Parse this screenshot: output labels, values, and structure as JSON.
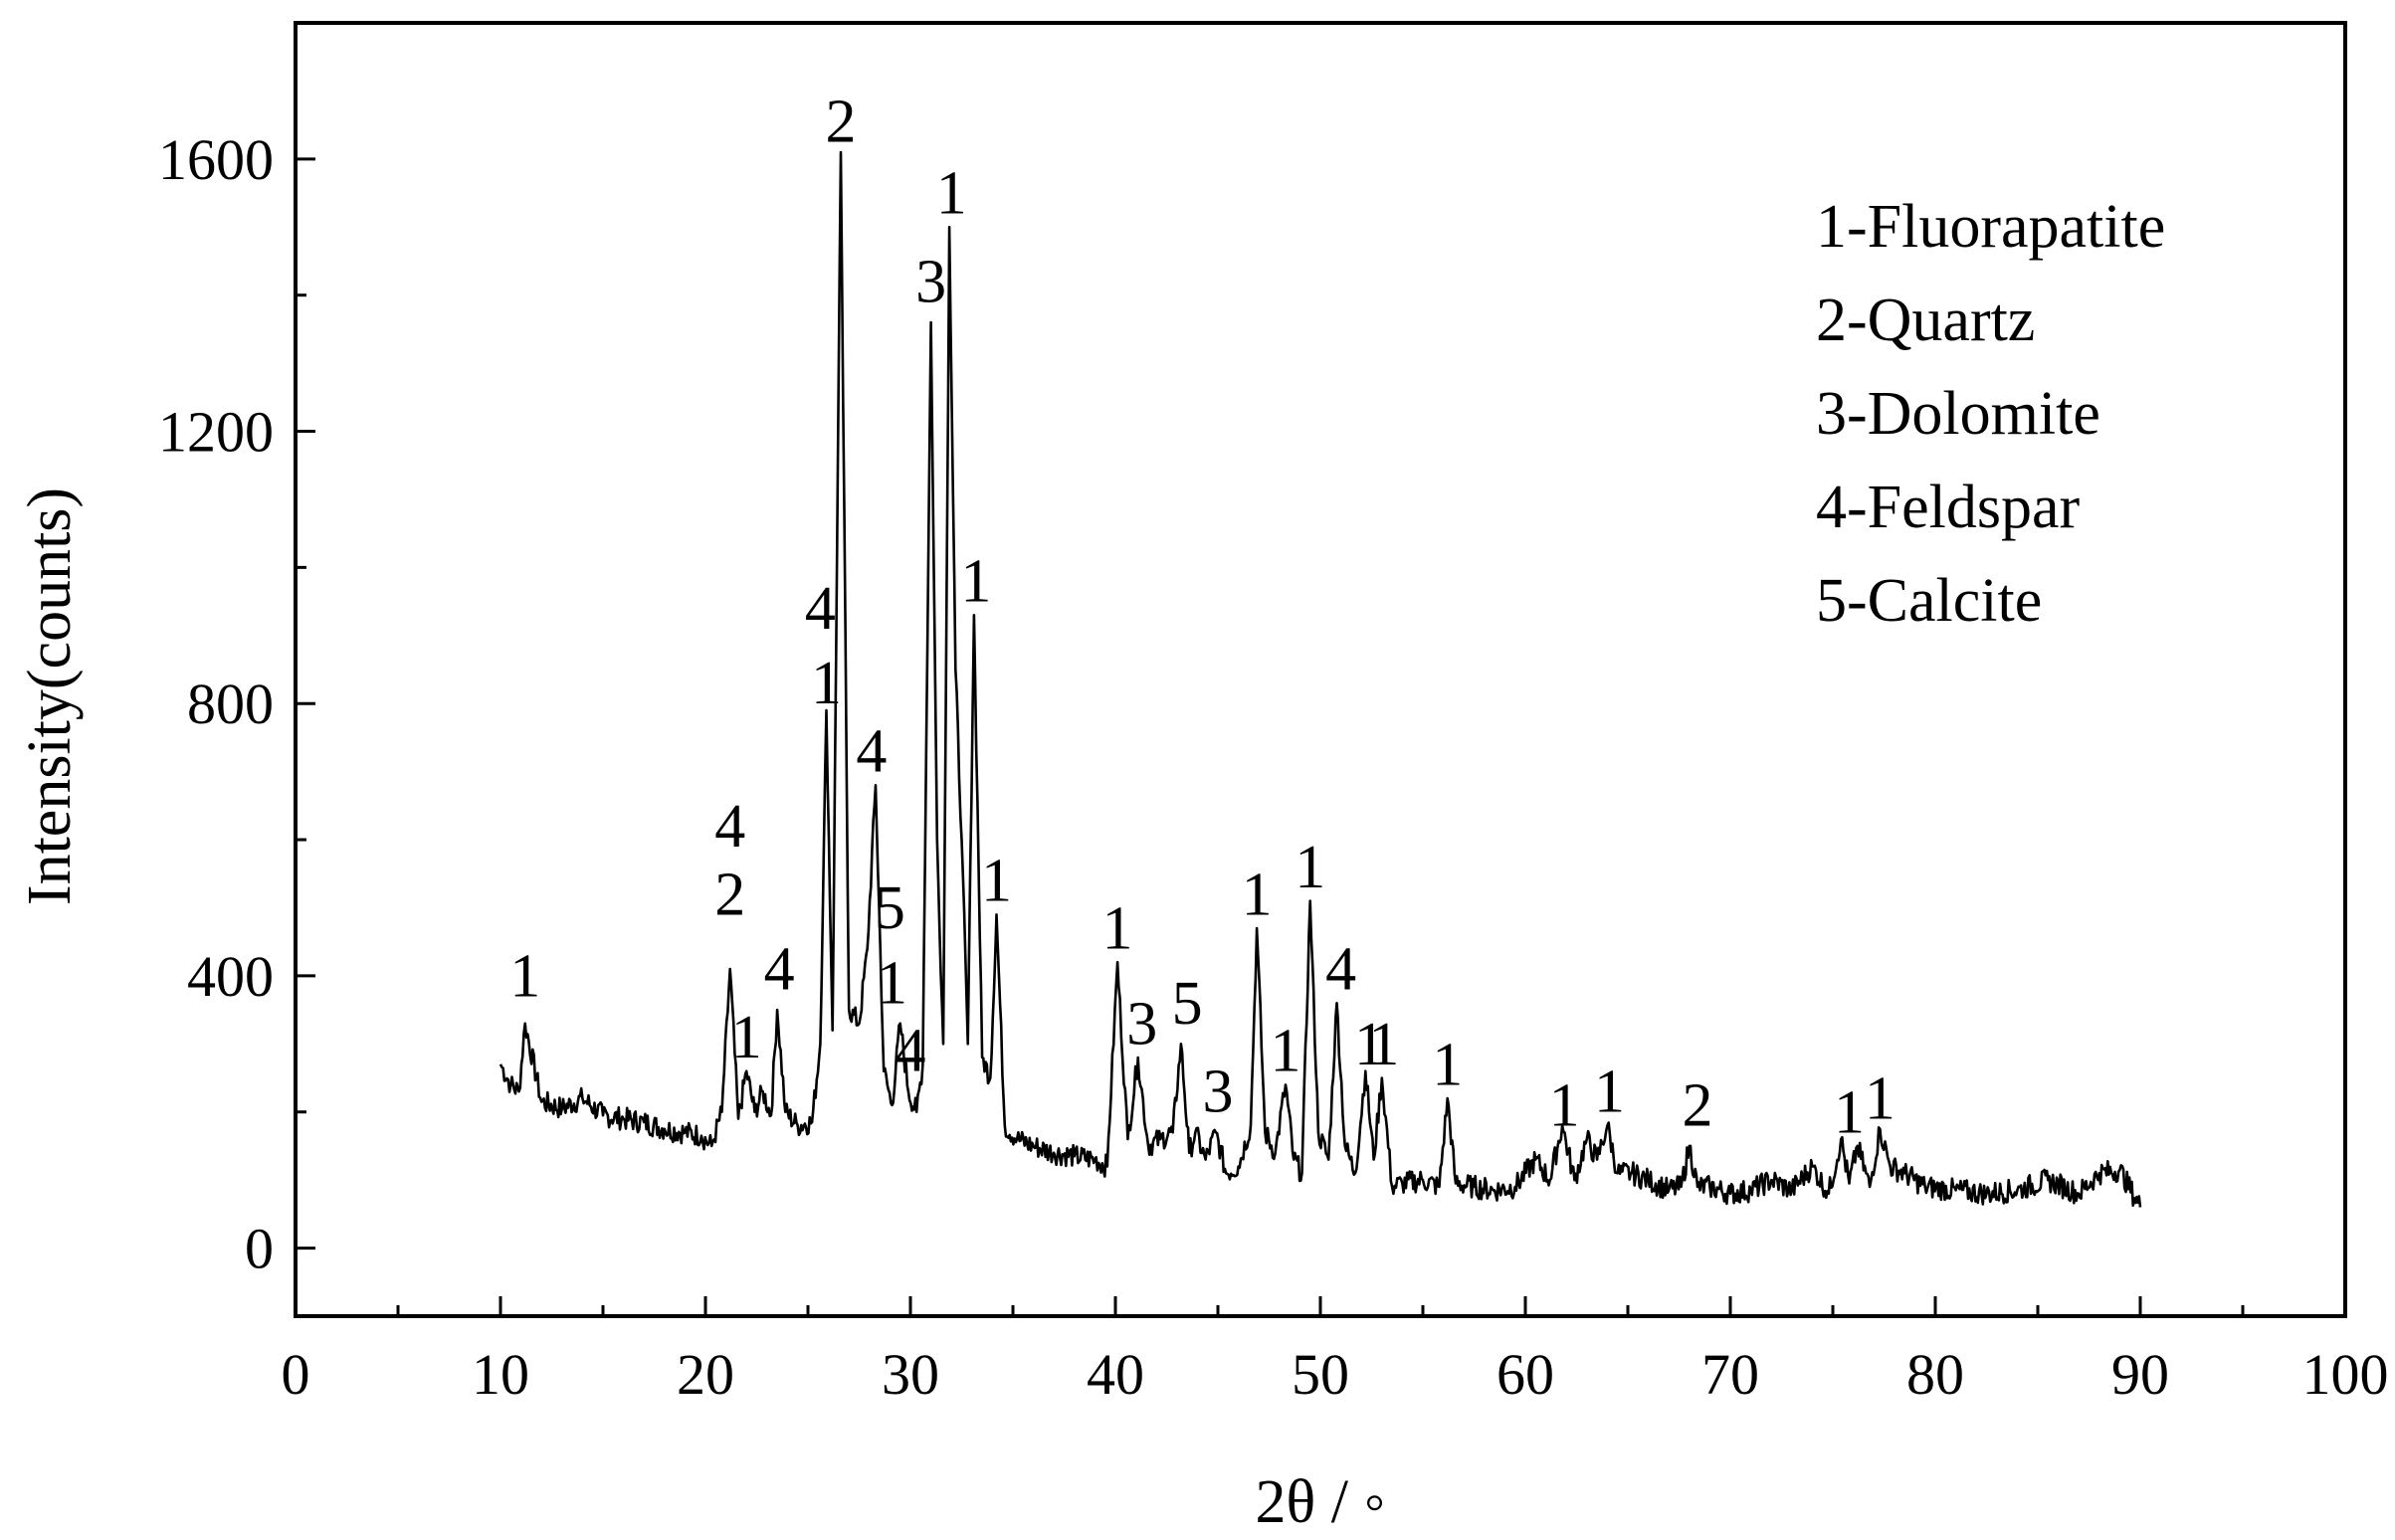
{
  "chart_data": {
    "type": "line",
    "title": "",
    "xlabel": "2θ / ◦",
    "ylabel": "Intensity(counts)",
    "xlim": [
      0,
      100
    ],
    "ylim": [
      -100,
      1800
    ],
    "x_ticks": [
      0,
      10,
      20,
      30,
      40,
      50,
      60,
      70,
      80,
      90,
      100
    ],
    "x_tick_labels": [
      "0",
      "10",
      "20",
      "30",
      "40",
      "50",
      "60",
      "70",
      "80",
      "90",
      "100"
    ],
    "y_ticks": [
      0,
      400,
      800,
      1200,
      1600
    ],
    "y_tick_labels": [
      "0",
      "400",
      "800",
      "1200",
      "1600"
    ],
    "grid": false,
    "legend_position": "top-right",
    "legend": [
      "1-Fluorapatite",
      "2-Quartz",
      "3-Dolomite",
      "4-Feldspar",
      "5-Calcite"
    ],
    "series": [
      {
        "x": [
          10,
          10.5,
          10.9,
          11.2,
          12,
          13,
          14,
          15,
          16,
          17,
          18,
          19,
          19.8,
          20.3,
          20.8,
          21.2,
          21.6,
          22,
          22.4,
          22.8,
          23.2,
          23.5,
          23.9,
          24.5,
          25.2,
          25.6,
          25.9,
          26.2,
          26.6,
          27,
          27.5,
          27.9,
          28.3,
          28.7,
          29.1,
          29.5,
          29.9,
          30.3,
          30.6,
          31,
          31.3,
          31.6,
          31.9,
          32.2,
          32.5,
          32.8,
          33.1,
          33.5,
          33.9,
          34.2,
          34.6,
          35.2,
          36,
          37,
          38,
          39,
          39.6,
          40.1,
          40.6,
          41.1,
          41.6,
          42.2,
          42.8,
          43.2,
          43.6,
          43.9,
          44.4,
          44.9,
          45.4,
          46,
          46.6,
          46.9,
          47.3,
          47.8,
          48.3,
          48.7,
          49.1,
          49.5,
          49.9,
          50.4,
          50.8,
          51.2,
          51.7,
          52.2,
          52.6,
          53,
          53.5,
          54,
          55,
          55.8,
          56.2,
          56.6,
          57.5,
          58.5,
          59.5,
          60.5,
          61.2,
          61.8,
          62.4,
          63,
          63.5,
          64,
          64.5,
          65.2,
          66,
          67,
          67.6,
          68,
          68.4,
          69,
          70,
          71,
          72,
          73,
          74,
          74.8,
          75.4,
          75.8,
          76.2,
          76.8,
          77.3,
          77.8,
          78.5,
          79.5,
          81,
          82.5,
          84,
          85.5,
          87,
          88,
          89,
          90
        ],
        "y": [
          270,
          240,
          230,
          330,
          215,
          205,
          220,
          195,
          190,
          185,
          175,
          170,
          165,
          150,
          200,
          410,
          190,
          260,
          200,
          230,
          195,
          350,
          200,
          180,
          185,
          300,
          790,
          320,
          1610,
          350,
          330,
          440,
          680,
          260,
          210,
          330,
          230,
          200,
          270,
          1360,
          600,
          300,
          1500,
          850,
          600,
          300,
          930,
          280,
          250,
          490,
          180,
          160,
          150,
          140,
          135,
          130,
          120,
          420,
          160,
          280,
          150,
          160,
          170,
          300,
          140,
          170,
          130,
          170,
          110,
          120,
          180,
          470,
          170,
          140,
          240,
          130,
          110,
          510,
          170,
          130,
          360,
          150,
          110,
          260,
          130,
          250,
          90,
          95,
          100,
          90,
          220,
          95,
          90,
          85,
          90,
          130,
          100,
          180,
          100,
          160,
          130,
          180,
          110,
          110,
          100,
          85,
          90,
          150,
          90,
          90,
          80,
          85,
          100,
          85,
          120,
          80,
          160,
          95,
          150,
          90,
          175,
          120,
          110,
          90,
          85,
          80,
          85,
          100,
          80,
          110,
          115,
          60
        ]
      }
    ],
    "peak_labels": [
      {
        "x": 11.2,
        "y": 370,
        "text": "1"
      },
      {
        "x": 21.2,
        "y": 590,
        "text": "4"
      },
      {
        "x": 21.2,
        "y": 490,
        "text": "2"
      },
      {
        "x": 22.0,
        "y": 280,
        "text": "1"
      },
      {
        "x": 23.6,
        "y": 380,
        "text": "4"
      },
      {
        "x": 25.6,
        "y": 910,
        "text": "4"
      },
      {
        "x": 25.9,
        "y": 800,
        "text": "1"
      },
      {
        "x": 26.6,
        "y": 1625,
        "text": "2"
      },
      {
        "x": 28.1,
        "y": 700,
        "text": "4"
      },
      {
        "x": 29.0,
        "y": 470,
        "text": "5"
      },
      {
        "x": 29.1,
        "y": 360,
        "text": "1"
      },
      {
        "x": 30.0,
        "y": 260,
        "text": "4"
      },
      {
        "x": 31.0,
        "y": 1390,
        "text": "3"
      },
      {
        "x": 32.0,
        "y": 1520,
        "text": "1"
      },
      {
        "x": 33.2,
        "y": 950,
        "text": "1"
      },
      {
        "x": 34.2,
        "y": 510,
        "text": "1"
      },
      {
        "x": 40.1,
        "y": 440,
        "text": "1"
      },
      {
        "x": 41.3,
        "y": 300,
        "text": "3"
      },
      {
        "x": 43.5,
        "y": 330,
        "text": "5"
      },
      {
        "x": 45.0,
        "y": 200,
        "text": "3"
      },
      {
        "x": 46.9,
        "y": 490,
        "text": "1"
      },
      {
        "x": 48.3,
        "y": 260,
        "text": "1"
      },
      {
        "x": 49.5,
        "y": 530,
        "text": "1"
      },
      {
        "x": 51.0,
        "y": 380,
        "text": "4"
      },
      {
        "x": 52.4,
        "y": 270,
        "text": "1"
      },
      {
        "x": 53.1,
        "y": 270,
        "text": "1"
      },
      {
        "x": 56.2,
        "y": 240,
        "text": "1"
      },
      {
        "x": 61.9,
        "y": 180,
        "text": "1"
      },
      {
        "x": 64.1,
        "y": 200,
        "text": "1"
      },
      {
        "x": 68.4,
        "y": 180,
        "text": "2"
      },
      {
        "x": 75.8,
        "y": 170,
        "text": "1"
      },
      {
        "x": 77.3,
        "y": 190,
        "text": "1"
      }
    ]
  }
}
